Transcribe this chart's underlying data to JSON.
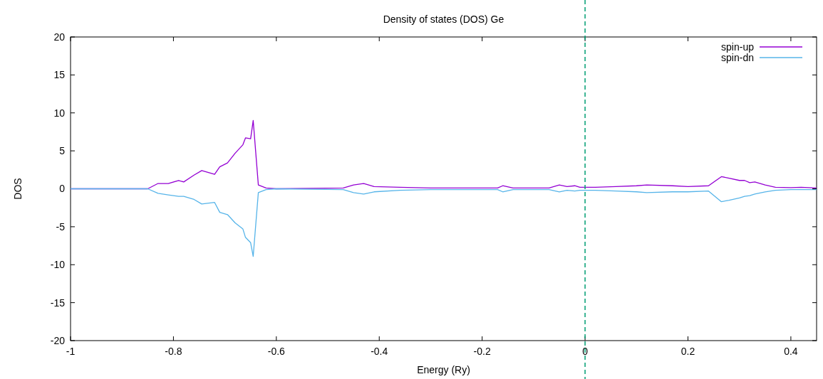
{
  "chart_data": {
    "type": "line",
    "title": "Density of states (DOS) Ge",
    "xlabel": "Energy (Ry)",
    "ylabel": "DOS",
    "x": [
      -1,
      -0.85,
      -0.83,
      -0.81,
      -0.79,
      -0.78,
      -0.76,
      -0.745,
      -0.72,
      -0.71,
      -0.695,
      -0.68,
      -0.665,
      -0.66,
      -0.65,
      -0.645,
      -0.635,
      -0.62,
      -0.6,
      -0.47,
      -0.45,
      -0.43,
      -0.41,
      -0.36,
      -0.3,
      -0.17,
      -0.16,
      -0.14,
      -0.07,
      -0.05,
      -0.035,
      -0.02,
      -0.01,
      0.02,
      0.06,
      0.1,
      0.12,
      0.17,
      0.2,
      0.24,
      0.265,
      0.28,
      0.3,
      0.31,
      0.32,
      0.33,
      0.35,
      0.37,
      0.4,
      0.42,
      0.45
    ],
    "series": [
      {
        "name": "spin-up",
        "color": "#9400d3",
        "values": [
          0,
          0,
          0.7,
          0.7,
          1.1,
          0.9,
          1.8,
          2.4,
          1.9,
          2.9,
          3.4,
          4.7,
          5.8,
          6.7,
          6.6,
          9,
          0.5,
          0.1,
          0,
          0.1,
          0.5,
          0.7,
          0.3,
          0.2,
          0.1,
          0.1,
          0.4,
          0.1,
          0.1,
          0.5,
          0.3,
          0.4,
          0.2,
          0.2,
          0.3,
          0.4,
          0.5,
          0.4,
          0.3,
          0.4,
          1.6,
          1.4,
          1.1,
          1.1,
          0.8,
          0.9,
          0.5,
          0.2,
          0.15,
          0.2,
          0.1
        ]
      },
      {
        "name": "spin-dn",
        "color": "#56b4e9",
        "values": [
          0,
          0,
          -0.6,
          -0.8,
          -1,
          -1,
          -1.4,
          -2,
          -1.8,
          -3.1,
          -3.4,
          -4.5,
          -5.3,
          -6.4,
          -7.1,
          -8.9,
          -0.5,
          -0.1,
          0,
          -0.1,
          -0.5,
          -0.7,
          -0.4,
          -0.2,
          -0.1,
          -0.1,
          -0.4,
          -0.1,
          -0.1,
          -0.4,
          -0.2,
          -0.3,
          -0.2,
          -0.2,
          -0.3,
          -0.4,
          -0.5,
          -0.4,
          -0.4,
          -0.3,
          -1.7,
          -1.5,
          -1.2,
          -1,
          -0.9,
          -0.7,
          -0.4,
          -0.2,
          -0.1,
          -0.1,
          -0.1
        ]
      }
    ],
    "xlim": [
      -1,
      0.45
    ],
    "xticks": [
      -1,
      -0.8,
      -0.6,
      -0.4,
      -0.2,
      0,
      0.2,
      0.4
    ],
    "ylim": [
      -20,
      20
    ],
    "yticks": [
      -20,
      -15,
      -10,
      -5,
      0,
      5,
      10,
      15,
      20
    ],
    "ref_lines": [
      {
        "axis": "x",
        "value": 0,
        "color": "#009e73",
        "line_style": "dashed"
      }
    ],
    "legend": "top right",
    "grid": false
  }
}
